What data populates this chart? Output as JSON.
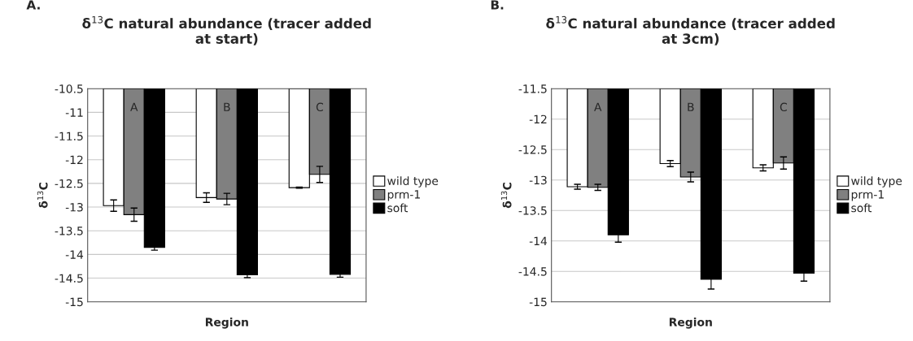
{
  "chart_data": [
    {
      "type": "bar",
      "title": "δ$^{13}$C natural abundance (tracer added\nat start)",
      "xlabel": "Region",
      "ylabel": "δ$^{13}$C",
      "annotations": [
        "A."
      ],
      "categories": [
        "A",
        "B",
        "C"
      ],
      "series": [
        {
          "name": "wild type",
          "color": "#ffffff",
          "values": [
            -12.97,
            -12.8,
            -12.59
          ],
          "errors": [
            0.12,
            0.1,
            0.01
          ]
        },
        {
          "name": "prm-1",
          "color": "#808080",
          "values": [
            -13.16,
            -12.83,
            -12.31
          ],
          "errors": [
            0.14,
            0.12,
            0.17
          ]
        },
        {
          "name": "soft",
          "color": "#000000",
          "values": [
            -13.85,
            -14.43,
            -14.42
          ],
          "errors": [
            0.06,
            0.06,
            0.06
          ]
        }
      ],
      "ylim": [
        -15,
        -10.5
      ],
      "yticks": [
        -15,
        -14.5,
        -14,
        -13.5,
        -13,
        -12.5,
        -12,
        -11.5,
        -11,
        -10.5
      ],
      "grid": "y",
      "legend": "right"
    },
    {
      "type": "bar",
      "title": "δ$^{13}$C natural abundance (tracer added\nat 3cm)",
      "xlabel": "Region",
      "ylabel": "δ$^{13}$C",
      "annotations": [
        "B."
      ],
      "categories": [
        "A",
        "B",
        "C"
      ],
      "series": [
        {
          "name": "wild type",
          "color": "#ffffff",
          "values": [
            -13.11,
            -12.73,
            -12.8
          ],
          "errors": [
            0.04,
            0.05,
            0.05
          ]
        },
        {
          "name": "prm-1",
          "color": "#808080",
          "values": [
            -13.12,
            -12.95,
            -12.72
          ],
          "errors": [
            0.05,
            0.08,
            0.1
          ]
        },
        {
          "name": "soft",
          "color": "#000000",
          "values": [
            -13.9,
            -14.63,
            -14.53
          ],
          "errors": [
            0.12,
            0.16,
            0.13
          ]
        }
      ],
      "ylim": [
        -15,
        -11.5
      ],
      "yticks": [
        -15,
        -14.5,
        -14,
        -13.5,
        -13,
        -12.5,
        -12,
        -11.5
      ],
      "grid": "y",
      "legend": "right"
    }
  ]
}
